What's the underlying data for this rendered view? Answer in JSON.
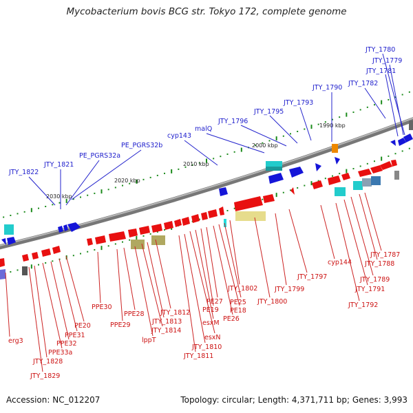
{
  "title": "Mycobacterium bovis BCG str. Tokyo 172, complete genome",
  "footer": {
    "accession": "Accession: NC_012207",
    "topology": "Topology: circular; Length: 4,371,711 bp; Genes: 3,993"
  },
  "colors": {
    "forward_gene": "#1515d8",
    "reverse_gene": "#e81010",
    "backbone": "#8a8a8a",
    "tick_marks": "#1a8a1a",
    "top_label": "#1c1ccc",
    "bottom_label": "#cc1111",
    "rna_cyan": "#22cccc",
    "pseudo_yellow": "#e6dc8c",
    "pseudo_olive": "#b0a860",
    "orange_feature": "#ee8800"
  },
  "tick_labels": [
    {
      "text": "1990 kbp",
      "kbp": 1990
    },
    {
      "text": "2000 kbp",
      "kbp": 2000
    },
    {
      "text": "2010 kbp",
      "kbp": 2010
    },
    {
      "text": "2020 kbp",
      "kbp": 2020
    },
    {
      "text": "2030 kbp",
      "kbp": 2030
    }
  ],
  "top_labels": [
    "JTY_1780",
    "JTY_1779",
    "JTY_1781",
    "JTY_1782",
    "JTY_1790",
    "JTY_1793",
    "JTY_1795",
    "JTY_1796",
    "malQ",
    "cyp143",
    "PE_PGRS32b",
    "PE_PGRS32a",
    "JTY_1821",
    "JTY_1822"
  ],
  "bottom_labels": [
    "JTY_1787",
    "JTY_1788",
    "JTY_1789",
    "JTY_1791",
    "JTY_1792",
    "cyp144",
    "JTY_1797",
    "JTY_1799",
    "JTY_1800",
    "JTY_1802",
    "PE25",
    "PE18",
    "PE26",
    "PE27",
    "PE19",
    "esxM",
    "esxN",
    "JTY_1810",
    "JTY_1811",
    "JTY_1812",
    "JTY_1813",
    "JTY_1814",
    "lppT",
    "PPE28",
    "PPE29",
    "PPE30",
    "PE20",
    "PPE31",
    "PPE32",
    "PPE33a",
    "JTY_1828",
    "JTY_1829",
    "erg3"
  ]
}
